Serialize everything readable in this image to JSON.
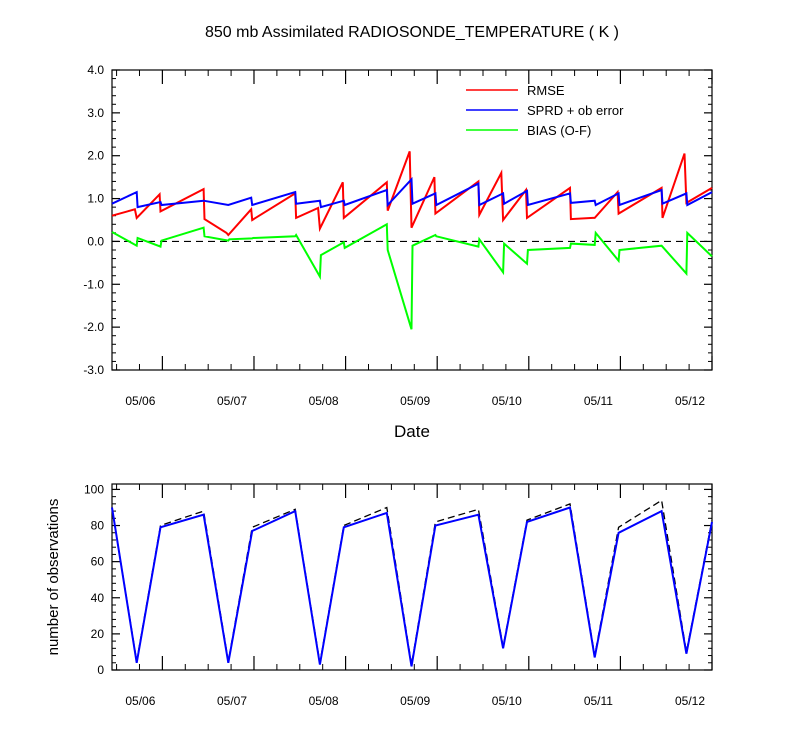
{
  "chart_data": [
    {
      "type": "line",
      "title": "850 mb Assimilated RADIOSONDE_TEMPERATURE ( K )",
      "xlabel": "Date",
      "ylabel": "",
      "x_tick_labels": [
        "05/06",
        "05/07",
        "05/08",
        "05/09",
        "05/10",
        "05/11",
        "05/12"
      ],
      "x_tick_days": [
        6,
        7,
        8,
        9,
        10,
        11,
        12
      ],
      "xlim_days": [
        5.45,
        12.0
      ],
      "y_ticks": [
        4.0,
        3.0,
        2.0,
        1.0,
        0.0,
        -1.0,
        -2.0,
        -3.0
      ],
      "y_tick_labels": [
        "4.0",
        "3.0",
        "2.0",
        "1.0",
        "0.0",
        "-1.0",
        "-2.0",
        "-3.0"
      ],
      "ylim": [
        -3.0,
        4.0
      ],
      "zero_line": true,
      "grid": false,
      "legend_position": "top-right",
      "series": [
        {
          "name": "RMSE",
          "color": "#ff0000",
          "points": [
            [
              5.45,
              0.6
            ],
            [
              5.7,
              0.75
            ],
            [
              5.72,
              0.55
            ],
            [
              5.97,
              1.1
            ],
            [
              5.98,
              0.7
            ],
            [
              6.45,
              1.22
            ],
            [
              6.46,
              0.52
            ],
            [
              6.7,
              0.2
            ],
            [
              6.72,
              0.15
            ],
            [
              6.97,
              0.75
            ],
            [
              6.98,
              0.5
            ],
            [
              7.45,
              1.12
            ],
            [
              7.46,
              0.55
            ],
            [
              7.7,
              0.78
            ],
            [
              7.72,
              0.3
            ],
            [
              7.97,
              1.38
            ],
            [
              7.98,
              0.55
            ],
            [
              8.45,
              1.38
            ],
            [
              8.46,
              0.72
            ],
            [
              8.7,
              2.1
            ],
            [
              8.72,
              0.32
            ],
            [
              8.97,
              1.5
            ],
            [
              8.98,
              0.65
            ],
            [
              9.45,
              1.4
            ],
            [
              9.46,
              0.62
            ],
            [
              9.7,
              1.6
            ],
            [
              9.72,
              0.5
            ],
            [
              9.97,
              1.2
            ],
            [
              9.98,
              0.55
            ],
            [
              10.45,
              1.25
            ],
            [
              10.46,
              0.52
            ],
            [
              10.7,
              0.55
            ],
            [
              10.72,
              0.55
            ],
            [
              10.97,
              1.15
            ],
            [
              10.98,
              0.65
            ],
            [
              11.45,
              1.25
            ],
            [
              11.46,
              0.55
            ],
            [
              11.7,
              2.05
            ],
            [
              11.72,
              0.9
            ],
            [
              12.0,
              1.25
            ]
          ]
        },
        {
          "name": "SPRD + ob error",
          "color": "#0000ff",
          "points": [
            [
              5.45,
              0.88
            ],
            [
              5.72,
              1.15
            ],
            [
              5.73,
              0.8
            ],
            [
              5.98,
              0.92
            ],
            [
              5.99,
              0.85
            ],
            [
              6.45,
              0.95
            ],
            [
              6.72,
              0.85
            ],
            [
              6.97,
              1.02
            ],
            [
              6.98,
              0.85
            ],
            [
              7.45,
              1.15
            ],
            [
              7.46,
              0.88
            ],
            [
              7.72,
              0.95
            ],
            [
              7.73,
              0.8
            ],
            [
              7.98,
              0.95
            ],
            [
              7.99,
              0.85
            ],
            [
              8.45,
              1.2
            ],
            [
              8.46,
              0.85
            ],
            [
              8.72,
              1.45
            ],
            [
              8.73,
              0.88
            ],
            [
              8.98,
              1.12
            ],
            [
              8.99,
              0.85
            ],
            [
              9.45,
              1.35
            ],
            [
              9.46,
              0.85
            ],
            [
              9.72,
              1.12
            ],
            [
              9.73,
              0.88
            ],
            [
              9.98,
              1.18
            ],
            [
              9.99,
              0.85
            ],
            [
              10.45,
              1.12
            ],
            [
              10.46,
              0.9
            ],
            [
              10.72,
              0.95
            ],
            [
              10.73,
              0.85
            ],
            [
              10.98,
              1.12
            ],
            [
              10.99,
              0.85
            ],
            [
              11.45,
              1.2
            ],
            [
              11.46,
              0.88
            ],
            [
              11.72,
              1.12
            ],
            [
              11.73,
              0.85
            ],
            [
              12.0,
              1.15
            ]
          ]
        },
        {
          "name": "BIAS (O-F)",
          "color": "#00ff00",
          "points": [
            [
              5.45,
              0.22
            ],
            [
              5.72,
              -0.1
            ],
            [
              5.73,
              0.08
            ],
            [
              5.98,
              -0.12
            ],
            [
              5.99,
              0.02
            ],
            [
              6.45,
              0.32
            ],
            [
              6.46,
              0.12
            ],
            [
              6.72,
              0.02
            ],
            [
              6.73,
              0.05
            ],
            [
              6.98,
              0.07
            ],
            [
              6.99,
              0.08
            ],
            [
              7.45,
              0.12
            ],
            [
              7.46,
              0.15
            ],
            [
              7.72,
              -0.82
            ],
            [
              7.73,
              -0.32
            ],
            [
              7.98,
              -0.02
            ],
            [
              7.99,
              -0.15
            ],
            [
              8.45,
              0.4
            ],
            [
              8.46,
              -0.2
            ],
            [
              8.72,
              -2.05
            ],
            [
              8.73,
              -0.1
            ],
            [
              8.98,
              0.15
            ],
            [
              8.99,
              0.12
            ],
            [
              9.45,
              -0.12
            ],
            [
              9.46,
              0.05
            ],
            [
              9.72,
              -0.72
            ],
            [
              9.73,
              -0.05
            ],
            [
              9.98,
              -0.52
            ],
            [
              9.99,
              -0.2
            ],
            [
              10.45,
              -0.15
            ],
            [
              10.46,
              -0.05
            ],
            [
              10.72,
              -0.08
            ],
            [
              10.73,
              0.2
            ],
            [
              10.98,
              -0.45
            ],
            [
              10.99,
              -0.2
            ],
            [
              11.45,
              -0.1
            ],
            [
              11.72,
              -0.75
            ],
            [
              11.73,
              0.2
            ],
            [
              12.0,
              -0.35
            ]
          ]
        }
      ]
    },
    {
      "type": "line",
      "title": "",
      "xlabel": "",
      "ylabel": "number of observations",
      "x_tick_labels": [
        "05/06",
        "05/07",
        "05/08",
        "05/09",
        "05/10",
        "05/11",
        "05/12"
      ],
      "x_tick_days": [
        6,
        7,
        8,
        9,
        10,
        11,
        12
      ],
      "xlim_days": [
        5.45,
        12.0
      ],
      "y_ticks": [
        0,
        20,
        40,
        60,
        80,
        100
      ],
      "y_tick_labels": [
        "0",
        "20",
        "40",
        "60",
        "80",
        "100"
      ],
      "ylim": [
        0,
        103
      ],
      "grid": false,
      "series": [
        {
          "name": "",
          "color": "#000000",
          "dashed": true,
          "points": [
            [
              5.45,
              90
            ],
            [
              5.72,
              5
            ],
            [
              5.98,
              80
            ],
            [
              6.45,
              88
            ],
            [
              6.72,
              5
            ],
            [
              6.98,
              79
            ],
            [
              7.45,
              89
            ],
            [
              7.72,
              4
            ],
            [
              7.98,
              80
            ],
            [
              8.45,
              90
            ],
            [
              8.72,
              3
            ],
            [
              8.98,
              82
            ],
            [
              9.45,
              89
            ],
            [
              9.72,
              13
            ],
            [
              9.98,
              83
            ],
            [
              10.45,
              92
            ],
            [
              10.72,
              8
            ],
            [
              10.98,
              79
            ],
            [
              11.45,
              94
            ],
            [
              11.72,
              10
            ],
            [
              12.0,
              83
            ]
          ]
        },
        {
          "name": "",
          "color": "#0000ff",
          "dashed": false,
          "points": [
            [
              5.45,
              90
            ],
            [
              5.72,
              4
            ],
            [
              5.98,
              79
            ],
            [
              6.45,
              86
            ],
            [
              6.72,
              4
            ],
            [
              6.98,
              77
            ],
            [
              7.45,
              88
            ],
            [
              7.72,
              3
            ],
            [
              7.98,
              79
            ],
            [
              8.45,
              87
            ],
            [
              8.72,
              2
            ],
            [
              8.98,
              80
            ],
            [
              9.45,
              86
            ],
            [
              9.72,
              12
            ],
            [
              9.98,
              82
            ],
            [
              10.45,
              90
            ],
            [
              10.72,
              7
            ],
            [
              10.98,
              76
            ],
            [
              11.45,
              88
            ],
            [
              11.72,
              9
            ],
            [
              12.0,
              82
            ]
          ]
        }
      ]
    }
  ]
}
